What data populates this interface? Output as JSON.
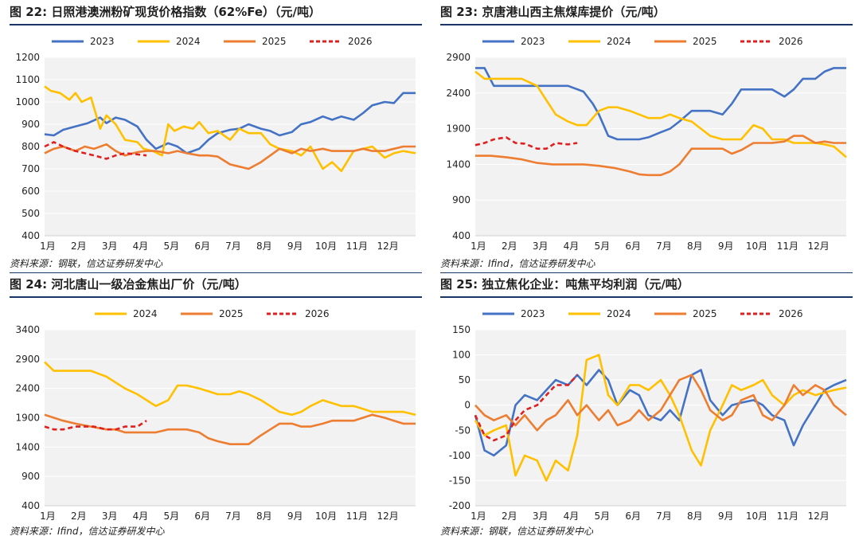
{
  "colors": {
    "2023": "#4472c4",
    "2024": "#ffc000",
    "2025": "#ed7d31",
    "2026": "#e02020",
    "rule": "#1a3668"
  },
  "chart_data": [
    {
      "type": "line",
      "title": "图 22:  日照港澳洲粉矿现货价格指数（62%Fe）（元/吨）",
      "source": "资料来源：钢联，信达证券研发中心",
      "categories": [
        "1月",
        "2月",
        "3月",
        "4月",
        "5月",
        "6月",
        "7月",
        "8月",
        "9月",
        "10月",
        "11月",
        "12月"
      ],
      "ylim": [
        400,
        1200
      ],
      "yticks": [
        400,
        500,
        600,
        700,
        800,
        900,
        1000,
        1100,
        1200
      ],
      "legend": "top",
      "series": [
        {
          "name": "2023",
          "x": [
            0,
            0.3,
            0.6,
            1,
            1.4,
            1.8,
            2,
            2.3,
            2.6,
            3,
            3.3,
            3.6,
            4,
            4.3,
            4.6,
            5,
            5.3,
            5.6,
            6,
            6.3,
            6.6,
            7,
            7.3,
            7.6,
            8,
            8.3,
            8.6,
            9,
            9.3,
            9.6,
            10,
            10.3,
            10.6,
            11,
            11.3,
            11.6,
            12
          ],
          "values": [
            855,
            850,
            875,
            890,
            905,
            930,
            905,
            930,
            920,
            890,
            830,
            790,
            815,
            800,
            770,
            790,
            830,
            860,
            875,
            880,
            900,
            880,
            870,
            850,
            865,
            900,
            910,
            935,
            920,
            935,
            920,
            950,
            985,
            1000,
            995,
            1040,
            1040
          ]
        },
        {
          "name": "2024",
          "x": [
            0,
            0.2,
            0.5,
            0.8,
            1,
            1.2,
            1.5,
            1.8,
            2,
            2.3,
            2.6,
            3,
            3.2,
            3.5,
            3.8,
            4,
            4.2,
            4.5,
            4.8,
            5,
            5.3,
            5.6,
            6,
            6.3,
            6.6,
            7,
            7.3,
            7.6,
            8,
            8.3,
            8.6,
            9,
            9.3,
            9.6,
            10,
            10.3,
            10.6,
            11,
            11.3,
            11.6,
            12
          ],
          "values": [
            1070,
            1050,
            1040,
            1010,
            1040,
            1000,
            1020,
            880,
            940,
            900,
            830,
            820,
            790,
            780,
            760,
            900,
            870,
            890,
            880,
            910,
            860,
            870,
            830,
            880,
            860,
            860,
            810,
            790,
            780,
            760,
            800,
            700,
            730,
            690,
            780,
            790,
            800,
            750,
            770,
            780,
            770
          ]
        },
        {
          "name": "2025",
          "x": [
            0,
            0.3,
            0.6,
            1,
            1.3,
            1.6,
            2,
            2.3,
            2.6,
            3,
            3.3,
            3.6,
            4,
            4.3,
            4.6,
            5,
            5.3,
            5.6,
            6,
            6.3,
            6.6,
            7,
            7.3,
            7.6,
            8,
            8.3,
            8.6,
            9,
            9.3,
            9.6,
            10,
            10.3,
            10.6,
            11,
            11.3,
            11.6,
            12
          ],
          "values": [
            770,
            790,
            800,
            780,
            800,
            790,
            810,
            780,
            760,
            775,
            780,
            780,
            770,
            780,
            770,
            760,
            760,
            755,
            720,
            710,
            700,
            730,
            760,
            790,
            770,
            790,
            780,
            790,
            780,
            780,
            780,
            790,
            780,
            780,
            790,
            800,
            800
          ]
        },
        {
          "name": "2026",
          "x": [
            0,
            0.3,
            0.6,
            1,
            1.3,
            1.6,
            2,
            2.3,
            2.6,
            3,
            3.3
          ],
          "values": [
            800,
            820,
            800,
            780,
            770,
            760,
            745,
            760,
            770,
            765,
            760
          ]
        }
      ]
    },
    {
      "type": "line",
      "title": "图 23:  京唐港山西主焦煤库提价（元/吨）",
      "source": "资料来源：Ifind，信达证券研发中心",
      "categories": [
        "1月",
        "2月",
        "3月",
        "4月",
        "5月",
        "6月",
        "7月",
        "8月",
        "9月",
        "10月",
        "11月",
        "12月"
      ],
      "ylim": [
        400,
        2900
      ],
      "yticks": [
        400,
        900,
        1400,
        1900,
        2400,
        2900
      ],
      "legend": "top",
      "series": [
        {
          "name": "2023",
          "x": [
            0,
            0.3,
            0.6,
            1,
            1.5,
            2,
            2.5,
            3,
            3.5,
            3.8,
            4,
            4.3,
            4.6,
            5,
            5.3,
            5.6,
            6,
            6.3,
            6.6,
            7,
            7.3,
            7.6,
            8,
            8.3,
            8.6,
            9,
            9.3,
            9.6,
            10,
            10.3,
            10.6,
            11,
            11.3,
            11.6,
            12
          ],
          "values": [
            2750,
            2750,
            2500,
            2500,
            2500,
            2500,
            2500,
            2500,
            2420,
            2250,
            2100,
            1800,
            1750,
            1750,
            1750,
            1780,
            1850,
            1900,
            2000,
            2150,
            2150,
            2150,
            2100,
            2250,
            2450,
            2450,
            2450,
            2450,
            2350,
            2450,
            2600,
            2600,
            2700,
            2750,
            2750
          ]
        },
        {
          "name": "2024",
          "x": [
            0,
            0.3,
            0.6,
            1,
            1.5,
            2,
            2.3,
            2.6,
            3,
            3.3,
            3.6,
            4,
            4.3,
            4.6,
            5,
            5.3,
            5.6,
            6,
            6.3,
            6.6,
            7,
            7.3,
            7.6,
            8,
            8.3,
            8.6,
            9,
            9.3,
            9.6,
            10,
            10.3,
            10.6,
            11,
            11.3,
            11.6,
            12
          ],
          "values": [
            2700,
            2600,
            2600,
            2600,
            2600,
            2500,
            2300,
            2100,
            2000,
            1950,
            1950,
            2150,
            2200,
            2200,
            2150,
            2100,
            2050,
            2050,
            2100,
            2050,
            2000,
            1900,
            1800,
            1750,
            1750,
            1750,
            1950,
            1900,
            1750,
            1750,
            1700,
            1700,
            1700,
            1680,
            1650,
            1500
          ]
        },
        {
          "name": "2025",
          "x": [
            0,
            0.5,
            1,
            1.5,
            2,
            2.5,
            3,
            3.5,
            4,
            4.5,
            5,
            5.3,
            5.6,
            6,
            6.3,
            6.6,
            7,
            7.3,
            7.6,
            8,
            8.3,
            8.6,
            9,
            9.3,
            9.6,
            10,
            10.3,
            10.6,
            11,
            11.3,
            11.6,
            12
          ],
          "values": [
            1520,
            1520,
            1500,
            1470,
            1420,
            1400,
            1400,
            1400,
            1380,
            1350,
            1300,
            1260,
            1250,
            1250,
            1300,
            1400,
            1620,
            1620,
            1620,
            1620,
            1550,
            1600,
            1700,
            1700,
            1700,
            1720,
            1800,
            1800,
            1700,
            1720,
            1700,
            1700
          ]
        },
        {
          "name": "2026",
          "x": [
            0,
            0.3,
            0.6,
            1,
            1.3,
            1.6,
            2,
            2.3,
            2.6,
            3,
            3.3
          ],
          "values": [
            1670,
            1700,
            1750,
            1780,
            1700,
            1690,
            1620,
            1620,
            1700,
            1680,
            1700
          ]
        }
      ]
    },
    {
      "type": "line",
      "title": "图 24:  河北唐山一级冶金焦出厂价（元/吨）",
      "source": "资料来源：Ifind，信达证券研发中心",
      "categories": [
        "1月",
        "2月",
        "3月",
        "4月",
        "5月",
        "6月",
        "7月",
        "8月",
        "9月",
        "10月",
        "11月",
        "12月"
      ],
      "ylim": [
        400,
        3400
      ],
      "yticks": [
        400,
        900,
        1400,
        1900,
        2400,
        2900,
        3400
      ],
      "legend": "top",
      "series": [
        {
          "name": "2024",
          "x": [
            0,
            0.3,
            0.6,
            1,
            1.5,
            2,
            2.3,
            2.6,
            3,
            3.3,
            3.6,
            4,
            4.3,
            4.6,
            5,
            5.3,
            5.6,
            6,
            6.3,
            6.6,
            7,
            7.3,
            7.6,
            8,
            8.3,
            8.6,
            9,
            9.3,
            9.6,
            10,
            10.3,
            10.6,
            11,
            11.3,
            11.6,
            12
          ],
          "values": [
            2850,
            2700,
            2700,
            2700,
            2700,
            2600,
            2500,
            2400,
            2300,
            2200,
            2100,
            2200,
            2450,
            2450,
            2400,
            2350,
            2300,
            2300,
            2350,
            2300,
            2200,
            2100,
            2000,
            1950,
            2000,
            2100,
            2200,
            2150,
            2100,
            2100,
            2050,
            2000,
            2000,
            2000,
            2000,
            1950
          ]
        },
        {
          "name": "2025",
          "x": [
            0,
            0.3,
            0.6,
            1,
            1.5,
            2,
            2.3,
            2.6,
            3,
            3.3,
            3.6,
            4,
            4.3,
            4.6,
            5,
            5.3,
            5.6,
            6,
            6.3,
            6.6,
            7,
            7.3,
            7.6,
            8,
            8.3,
            8.6,
            9,
            9.3,
            9.6,
            10,
            10.3,
            10.6,
            11,
            11.3,
            11.6,
            12
          ],
          "values": [
            1950,
            1900,
            1850,
            1800,
            1750,
            1700,
            1700,
            1650,
            1650,
            1650,
            1650,
            1700,
            1700,
            1700,
            1650,
            1550,
            1500,
            1450,
            1450,
            1450,
            1600,
            1700,
            1800,
            1800,
            1750,
            1750,
            1800,
            1850,
            1850,
            1850,
            1900,
            1950,
            1900,
            1850,
            1800,
            1800
          ]
        },
        {
          "name": "2026",
          "x": [
            0,
            0.3,
            0.6,
            1,
            1.3,
            1.6,
            2,
            2.3,
            2.6,
            3,
            3.3
          ],
          "values": [
            1750,
            1700,
            1700,
            1750,
            1750,
            1750,
            1700,
            1700,
            1750,
            1750,
            1850
          ]
        }
      ]
    },
    {
      "type": "line",
      "title": "图 25:  独立焦化企业：吨焦平均利润（元/吨）",
      "source": "资料来源：钢联，信达证券研发中心",
      "categories": [
        "1月",
        "2月",
        "3月",
        "4月",
        "5月",
        "6月",
        "7月",
        "8月",
        "9月",
        "10月",
        "11月",
        "12月"
      ],
      "ylim": [
        -200,
        150
      ],
      "yticks": [
        -200,
        -150,
        -100,
        -50,
        0,
        50,
        100,
        150
      ],
      "legend": "top",
      "series": [
        {
          "name": "2023",
          "x": [
            0,
            0.3,
            0.6,
            1,
            1.3,
            1.6,
            2,
            2.3,
            2.6,
            3,
            3.3,
            3.6,
            4,
            4.3,
            4.6,
            5,
            5.3,
            5.6,
            6,
            6.3,
            6.6,
            7,
            7.3,
            7.6,
            8,
            8.3,
            8.6,
            9,
            9.3,
            9.6,
            10,
            10.3,
            10.6,
            11,
            11.3,
            11.6,
            12
          ],
          "values": [
            -20,
            -90,
            -100,
            -80,
            0,
            20,
            10,
            30,
            50,
            40,
            60,
            40,
            70,
            50,
            0,
            30,
            20,
            -20,
            -30,
            -10,
            -30,
            60,
            70,
            10,
            -20,
            0,
            5,
            10,
            0,
            -20,
            -30,
            -80,
            -40,
            0,
            30,
            40,
            50
          ]
        },
        {
          "name": "2024",
          "x": [
            0,
            0.3,
            0.6,
            1,
            1.3,
            1.6,
            2,
            2.3,
            2.6,
            3,
            3.3,
            3.6,
            4,
            4.3,
            4.6,
            5,
            5.3,
            5.6,
            6,
            6.3,
            6.6,
            7,
            7.3,
            7.6,
            8,
            8.3,
            8.6,
            9,
            9.3,
            9.6,
            10,
            10.3,
            10.6,
            11,
            11.3,
            11.6,
            12
          ],
          "values": [
            -30,
            -60,
            -50,
            -40,
            -140,
            -100,
            -110,
            -150,
            -110,
            -130,
            -60,
            90,
            100,
            20,
            0,
            40,
            40,
            30,
            50,
            20,
            -20,
            -90,
            -120,
            -50,
            0,
            40,
            30,
            40,
            50,
            20,
            0,
            20,
            30,
            20,
            25,
            30,
            35
          ]
        },
        {
          "name": "2025",
          "x": [
            0,
            0.3,
            0.6,
            1,
            1.3,
            1.6,
            2,
            2.3,
            2.6,
            3,
            3.3,
            3.6,
            4,
            4.3,
            4.6,
            5,
            5.3,
            5.6,
            6,
            6.3,
            6.6,
            7,
            7.3,
            7.6,
            8,
            8.3,
            8.6,
            9,
            9.3,
            9.6,
            10,
            10.3,
            10.6,
            11,
            11.3,
            11.6,
            12
          ],
          "values": [
            0,
            -20,
            -30,
            -20,
            -40,
            -20,
            -50,
            -30,
            -20,
            10,
            -20,
            0,
            -30,
            -10,
            -40,
            -30,
            -10,
            -30,
            -10,
            20,
            50,
            60,
            30,
            -10,
            -30,
            -20,
            10,
            20,
            -20,
            -30,
            0,
            40,
            20,
            40,
            30,
            0,
            -20
          ]
        },
        {
          "name": "2026",
          "x": [
            0,
            0.3,
            0.6,
            1,
            1.3,
            1.6,
            2,
            2.3,
            2.6,
            3,
            3.3
          ],
          "values": [
            -20,
            -60,
            -70,
            -60,
            -30,
            -10,
            0,
            20,
            40,
            40,
            60
          ]
        }
      ]
    }
  ]
}
